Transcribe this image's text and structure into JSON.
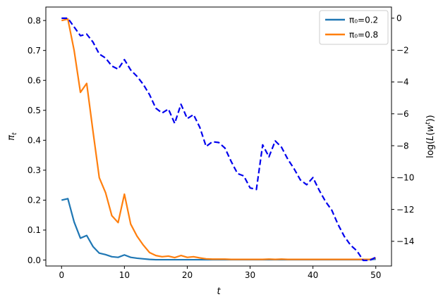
{
  "chart_data": {
    "type": "line",
    "x": [
      0,
      1,
      2,
      3,
      4,
      5,
      6,
      7,
      8,
      9,
      10,
      11,
      12,
      13,
      14,
      15,
      16,
      17,
      18,
      19,
      20,
      21,
      22,
      23,
      24,
      25,
      26,
      27,
      28,
      29,
      30,
      31,
      32,
      33,
      34,
      35,
      36,
      37,
      38,
      39,
      40,
      41,
      42,
      43,
      44,
      45,
      46,
      47,
      48,
      49,
      50
    ],
    "xlabel": "t",
    "ylabel": "π_t",
    "y2label": "log(L(w^t))",
    "xlim": [
      -2.5,
      52.5
    ],
    "ylim": [
      -0.02,
      0.845
    ],
    "y2lim": [
      -15.55,
      0.7
    ],
    "xticks": [
      0,
      10,
      20,
      30,
      40,
      50
    ],
    "yticks": [
      0.0,
      0.1,
      0.2,
      0.3,
      0.4,
      0.5,
      0.6,
      0.7,
      0.8
    ],
    "y2ticks": [
      0,
      -2,
      -4,
      -6,
      -8,
      -10,
      -12,
      -14
    ],
    "legend_position": "top-right",
    "grid": false,
    "series": [
      {
        "name": "π₀=0.2",
        "axis": "left",
        "color": "#1f77b4",
        "style": "solid",
        "values": [
          0.2,
          0.205,
          0.127,
          0.073,
          0.082,
          0.045,
          0.023,
          0.018,
          0.011,
          0.009,
          0.017,
          0.009,
          0.006,
          0.004,
          0.002,
          0.001,
          0.001,
          0.001,
          0.001,
          0.001,
          0.001,
          0.001,
          0.001,
          0.001,
          0.001,
          0.001,
          0.001,
          0.001,
          0.001,
          0.001,
          0.001,
          0.001,
          0.001,
          0.001,
          0.001,
          0.001,
          0.001,
          0.001,
          0.001,
          0.001,
          0.001,
          0.001,
          0.001,
          0.001,
          0.001,
          0.001,
          0.001,
          0.001,
          0.001,
          0.001,
          0.003
        ]
      },
      {
        "name": "π₀=0.8",
        "axis": "left",
        "color": "#ff7f0e",
        "style": "solid",
        "values": [
          0.8,
          0.805,
          0.7,
          0.56,
          0.59,
          0.43,
          0.275,
          0.225,
          0.148,
          0.125,
          0.22,
          0.12,
          0.08,
          0.05,
          0.025,
          0.015,
          0.011,
          0.013,
          0.008,
          0.015,
          0.009,
          0.011,
          0.007,
          0.004,
          0.003,
          0.003,
          0.003,
          0.002,
          0.002,
          0.002,
          0.002,
          0.002,
          0.002,
          0.003,
          0.002,
          0.003,
          0.002,
          0.002,
          0.002,
          0.002,
          0.002,
          0.002,
          0.002,
          0.002,
          0.002,
          0.002,
          0.002,
          0.002,
          0.002,
          0.002,
          0.007
        ]
      },
      {
        "axis": "right",
        "color": "#0000ee",
        "style": "dashed",
        "values": [
          0.0,
          0.0,
          -0.55,
          -1.1,
          -1.0,
          -1.5,
          -2.25,
          -2.5,
          -3.0,
          -3.2,
          -2.6,
          -3.25,
          -3.65,
          -4.15,
          -4.8,
          -5.65,
          -5.95,
          -5.7,
          -6.6,
          -5.4,
          -6.3,
          -6.05,
          -6.85,
          -8.05,
          -7.75,
          -7.8,
          -8.15,
          -9.0,
          -9.75,
          -9.9,
          -10.65,
          -10.75,
          -7.95,
          -8.7,
          -7.7,
          -8.1,
          -8.85,
          -9.45,
          -10.15,
          -10.45,
          -10.0,
          -10.8,
          -11.5,
          -12.05,
          -12.95,
          -13.7,
          -14.25,
          -14.6,
          -15.2,
          -15.2,
          -15.0
        ]
      }
    ]
  }
}
